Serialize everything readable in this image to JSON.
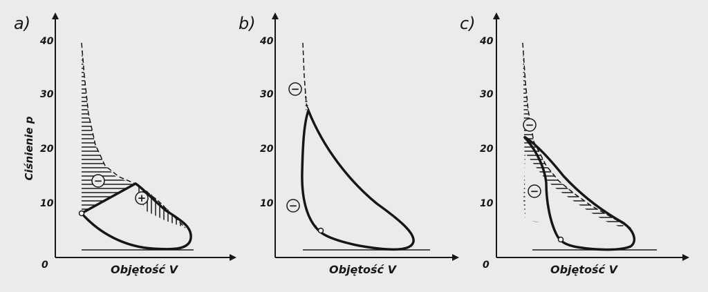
{
  "figure": {
    "y_axis_label": "Ciśnienie p",
    "panels": [
      {
        "id": "a",
        "label": "a)",
        "x_axis_label": "Objętość V",
        "y_ticks": [
          "0",
          "10",
          "20",
          "30",
          "40"
        ],
        "signs": [
          "−",
          "+"
        ]
      },
      {
        "id": "b",
        "label": "b)",
        "x_axis_label": "Objętość V",
        "y_ticks": [
          "10",
          "20",
          "30",
          "40"
        ],
        "signs": [
          "−",
          "−"
        ]
      },
      {
        "id": "c",
        "label": "c)",
        "x_axis_label": "Objętość V",
        "y_ticks": [
          "0",
          "10",
          "20",
          "30",
          "40"
        ],
        "signs": [
          "−",
          "−"
        ]
      }
    ]
  },
  "colors": {
    "ink": "#161616",
    "paper": "#ebebea"
  }
}
